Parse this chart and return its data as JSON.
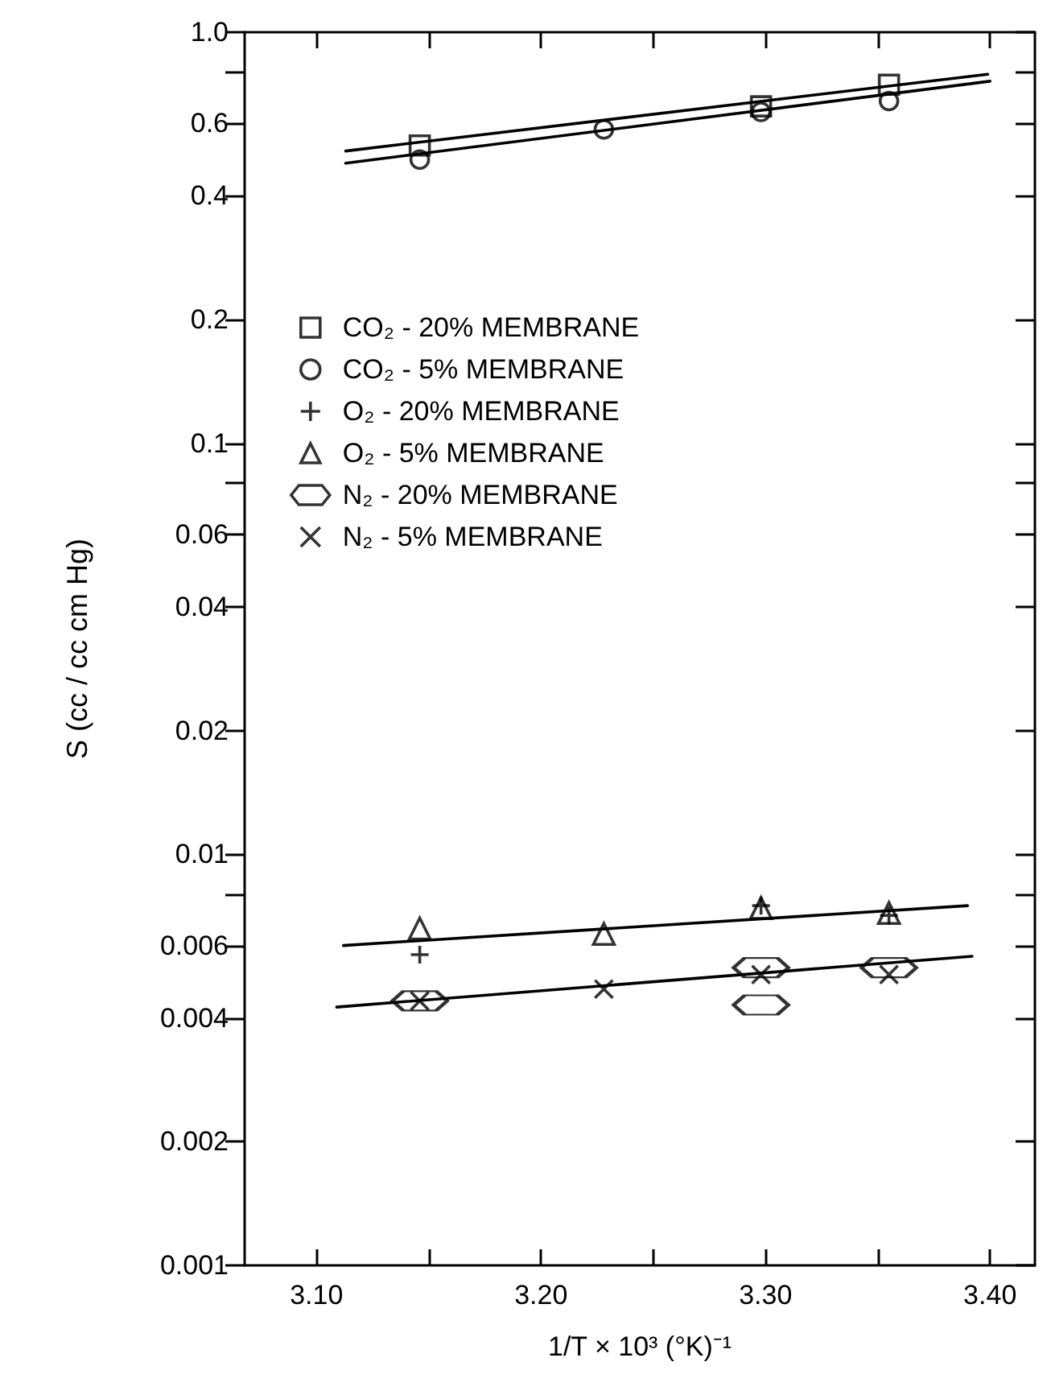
{
  "chart_data": {
    "type": "scatter",
    "xlabel": "1/T × 10³ (°K)⁻¹",
    "ylabel": "S (cc / cc cm Hg)",
    "log": "y",
    "xlim": [
      3.068,
      3.42
    ],
    "ylim": [
      0.001,
      1
    ],
    "xticks": [
      {
        "value": 3.1,
        "label": "3.10"
      },
      {
        "value": 3.15,
        "label": null
      },
      {
        "value": 3.2,
        "label": "3.20"
      },
      {
        "value": 3.25,
        "label": null
      },
      {
        "value": 3.3,
        "label": "3.30"
      },
      {
        "value": 3.35,
        "label": null
      },
      {
        "value": 3.4,
        "label": "3.40"
      }
    ],
    "yticks": [
      {
        "value": 0.001,
        "label": "0.001"
      },
      {
        "value": 0.002,
        "label": "0.002"
      },
      {
        "value": 0.004,
        "label": "0.004"
      },
      {
        "value": 0.006,
        "label": "0.006"
      },
      {
        "value": 0.008,
        "label": null
      },
      {
        "value": 0.01,
        "label": "0.01"
      },
      {
        "value": 0.02,
        "label": "0.02"
      },
      {
        "value": 0.04,
        "label": "0.04"
      },
      {
        "value": 0.06,
        "label": "0.06"
      },
      {
        "value": 0.08,
        "label": null
      },
      {
        "value": 0.1,
        "label": "0.1"
      },
      {
        "value": 0.2,
        "label": "0.2"
      },
      {
        "value": 0.4,
        "label": "0.4"
      },
      {
        "value": 0.6,
        "label": "0.6"
      },
      {
        "value": 0.8,
        "label": null
      },
      {
        "value": 1,
        "label": "1.0"
      }
    ],
    "grid": false,
    "legend": "left",
    "series": [
      {
        "name": "CO₂ - 20% MEMBRANE",
        "color": "#000000",
        "marker": "square",
        "x": [
          3.146,
          3.298,
          3.355
        ],
        "values": [
          0.53,
          0.66,
          0.745
        ]
      },
      {
        "name": "CO₂ - 5% MEMBRANE",
        "color": "#000000",
        "marker": "circle",
        "x": [
          3.146,
          3.228,
          3.298,
          3.355
        ],
        "values": [
          0.49,
          0.58,
          0.64,
          0.68
        ]
      },
      {
        "name": "O₂ - 20% MEMBRANE",
        "color": "#000000",
        "marker": "cross",
        "x": [
          3.146,
          3.298,
          3.355
        ],
        "values": [
          0.0057,
          0.0075,
          0.0071
        ]
      },
      {
        "name": "O₂ - 5% MEMBRANE",
        "color": "#000000",
        "marker": "triangle",
        "x": [
          3.146,
          3.228,
          3.298,
          3.355
        ],
        "values": [
          0.0066,
          0.0064,
          0.0074,
          0.0072
        ]
      },
      {
        "name": "N₂ - 20% MEMBRANE",
        "color": "#000000",
        "x": [
          3.146,
          3.298,
          3.298,
          3.355
        ],
        "values": [
          0.0044,
          0.0053,
          0.0043,
          0.0053
        ]
      },
      {
        "name": "N₂ - 5% MEMBRANE",
        "color": "#000000",
        "marker": "x",
        "x": [
          3.146,
          3.228,
          3.298,
          3.355
        ],
        "values": [
          0.0044,
          0.0047,
          0.0051,
          0.0051
        ]
      },
      {
        "type": "line",
        "color": "#000000",
        "marker": "none",
        "line_style": "solid",
        "x": [
          3.113,
          3.399
        ],
        "values": [
          0.514,
          0.79
        ]
      },
      {
        "type": "line",
        "color": "#000000",
        "marker": "none",
        "line_style": "solid",
        "x": [
          3.113,
          3.4
        ],
        "values": [
          0.48,
          0.76
        ]
      },
      {
        "type": "line",
        "color": "#000000",
        "marker": "none",
        "line_style": "solid",
        "x": [
          3.112,
          3.39
        ],
        "values": [
          0.006,
          0.0075
        ]
      },
      {
        "type": "line",
        "color": "#000000",
        "marker": "none",
        "line_style": "solid",
        "x": [
          3.109,
          3.392
        ],
        "values": [
          0.00425,
          0.00565
        ]
      }
    ]
  }
}
